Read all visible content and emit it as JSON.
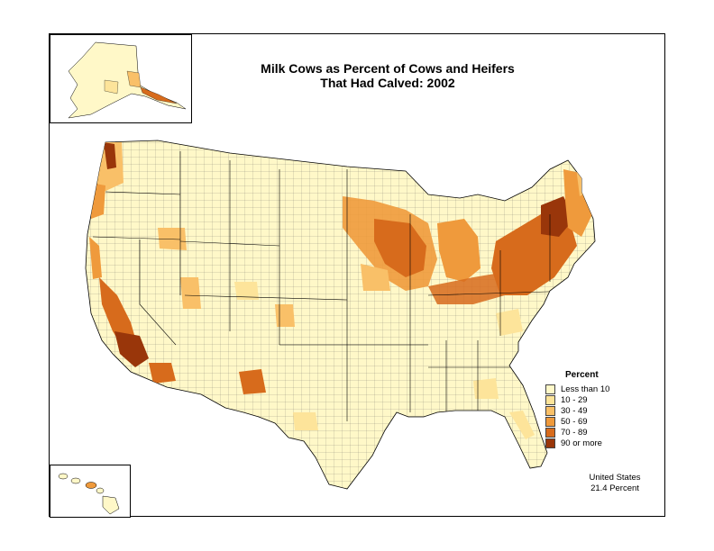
{
  "title": {
    "line1": "Milk Cows as Percent of Cows and Heifers",
    "line2": "That Had Calved:  2002"
  },
  "legend": {
    "title": "Percent",
    "items": [
      {
        "label": "Less than 10",
        "color": "#fff8c8"
      },
      {
        "label": "10 - 29",
        "color": "#fde49a"
      },
      {
        "label": "30 - 49",
        "color": "#f9c068"
      },
      {
        "label": "50 - 69",
        "color": "#ef9a3c"
      },
      {
        "label": "70 - 89",
        "color": "#d76b1c"
      },
      {
        "label": "90 or more",
        "color": "#99360a"
      }
    ]
  },
  "summary": {
    "line1": "United States",
    "line2": "21.4 Percent"
  }
}
